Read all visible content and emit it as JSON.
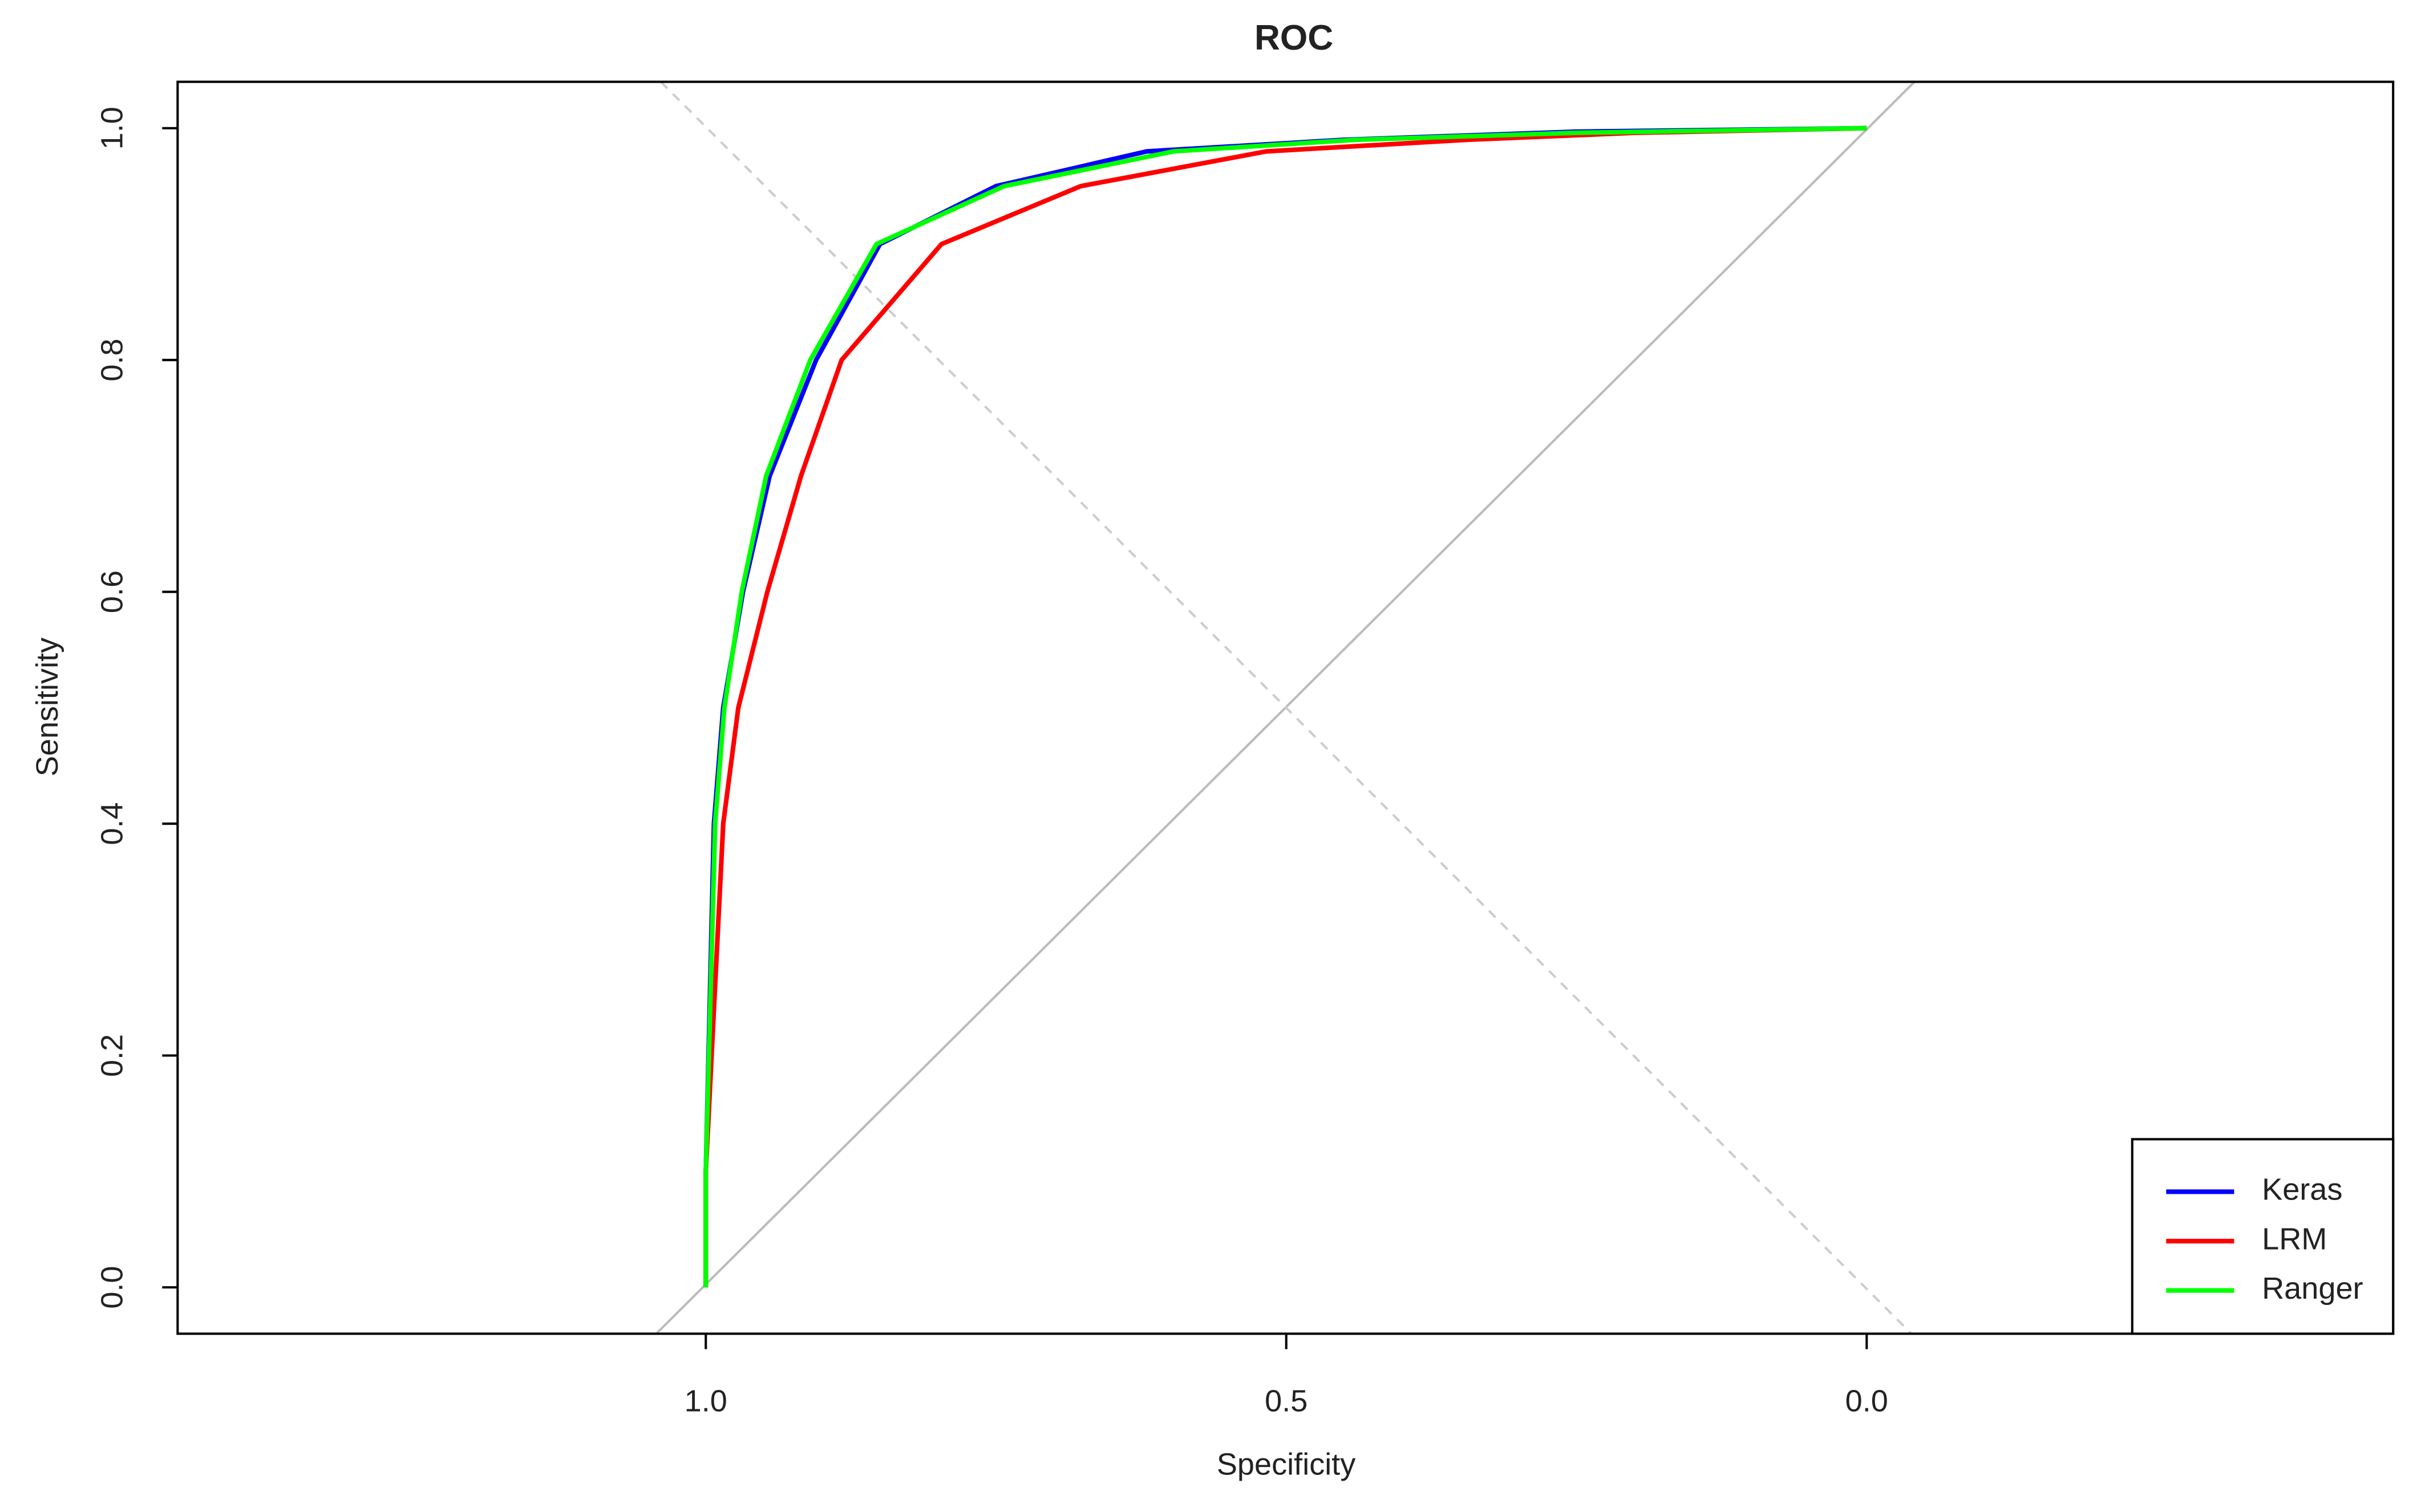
{
  "chart_data": {
    "type": "line",
    "title": "ROC",
    "x_label": "Specificity",
    "y_label": "Sensitivity",
    "xlim": [
      1.455,
      -0.4535
    ],
    "ylim": [
      -0.04,
      1.04
    ],
    "xticks": [
      {
        "value": 1.0,
        "label": "1.0"
      },
      {
        "value": 0.5,
        "label": "0.5"
      },
      {
        "value": 0.0,
        "label": "0.0"
      }
    ],
    "yticks": [
      {
        "value": 0.0,
        "label": "0.0"
      },
      {
        "value": 0.2,
        "label": "0.2"
      },
      {
        "value": 0.4,
        "label": "0.4"
      },
      {
        "value": 0.6,
        "label": "0.6"
      },
      {
        "value": 0.8,
        "label": "0.8"
      },
      {
        "value": 1.0,
        "label": "1.0"
      }
    ],
    "legend": "bottomright",
    "series": [
      {
        "name": "Keras",
        "color": "#0000ff",
        "x": [
          1.0,
          1.0,
          0.993,
          0.985,
          0.968,
          0.945,
          0.905,
          0.85,
          0.75,
          0.62,
          0.45,
          0.25,
          0.0
        ],
        "values": [
          0.0,
          0.1,
          0.4,
          0.5,
          0.6,
          0.7,
          0.8,
          0.9,
          0.95,
          0.98,
          0.99,
          0.997,
          1.0
        ]
      },
      {
        "name": "LRM",
        "color": "#ff0000",
        "x": [
          1.0,
          1.0,
          0.985,
          0.972,
          0.947,
          0.918,
          0.883,
          0.797,
          0.677,
          0.517,
          0.344,
          0.2,
          0.0
        ],
        "values": [
          0.0,
          0.1,
          0.4,
          0.5,
          0.6,
          0.7,
          0.8,
          0.9,
          0.95,
          0.98,
          0.99,
          0.996,
          1.0
        ]
      },
      {
        "name": "Ranger",
        "color": "#00ff00",
        "x": [
          1.0,
          1.0,
          0.992,
          0.984,
          0.969,
          0.948,
          0.91,
          0.853,
          0.743,
          0.597,
          0.44,
          0.25,
          0.0
        ],
        "values": [
          0.0,
          0.1,
          0.4,
          0.5,
          0.6,
          0.7,
          0.8,
          0.9,
          0.95,
          0.98,
          0.99,
          0.996,
          1.0
        ]
      }
    ]
  }
}
